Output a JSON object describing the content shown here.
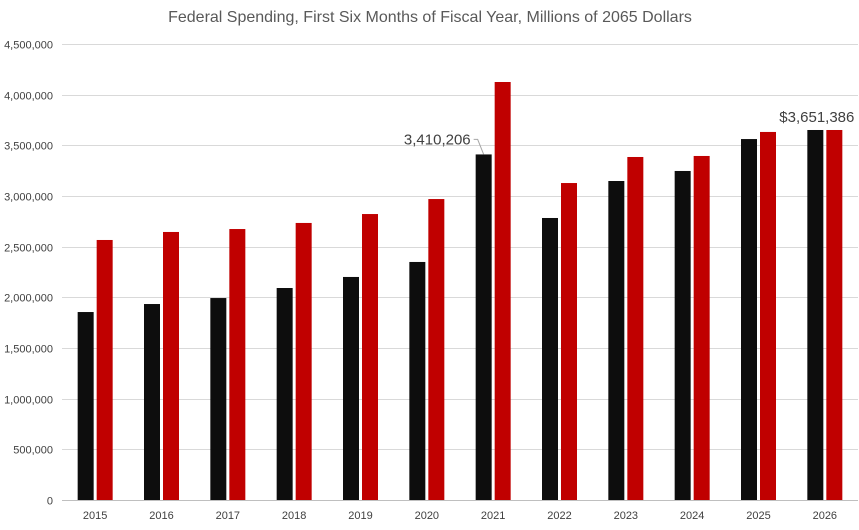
{
  "chart_data": {
    "type": "bar",
    "title": "Federal Spending, First Six Months of Fiscal Year, Millions of 2065 Dollars",
    "xlabel": "",
    "ylabel": "",
    "ylim": [
      0,
      4500000
    ],
    "yticks": [
      0,
      500000,
      1000000,
      1500000,
      2000000,
      2500000,
      3000000,
      3500000,
      4000000,
      4500000
    ],
    "ytick_labels": [
      "0",
      "500,000",
      "1,000,000",
      "1,500,000",
      "2,000,000",
      "2,500,000",
      "3,000,000",
      "3,500,000",
      "4,000,000",
      "4,500,000"
    ],
    "grid": true,
    "legend": "none",
    "categories": [
      "2015",
      "2016",
      "2017",
      "2018",
      "2019",
      "2020",
      "2021",
      "2022",
      "2023",
      "2024",
      "2025",
      "2026"
    ],
    "series": [
      {
        "color": "#0d0d0d",
        "values": [
          1855000,
          1934000,
          1993000,
          2092000,
          2201000,
          2349000,
          3410206,
          2783000,
          3148000,
          3247000,
          3562000,
          3651386
        ]
      },
      {
        "color": "#c00000",
        "values": [
          2566000,
          2645000,
          2674000,
          2734000,
          2822000,
          2970000,
          4125000,
          3128000,
          3385000,
          3395000,
          3632000,
          3651386
        ]
      }
    ],
    "annotations": [
      {
        "category": "2021",
        "series": 0,
        "text": "3,410,206"
      },
      {
        "category": "2026",
        "series": 0,
        "text": "$3,651,386"
      }
    ]
  }
}
